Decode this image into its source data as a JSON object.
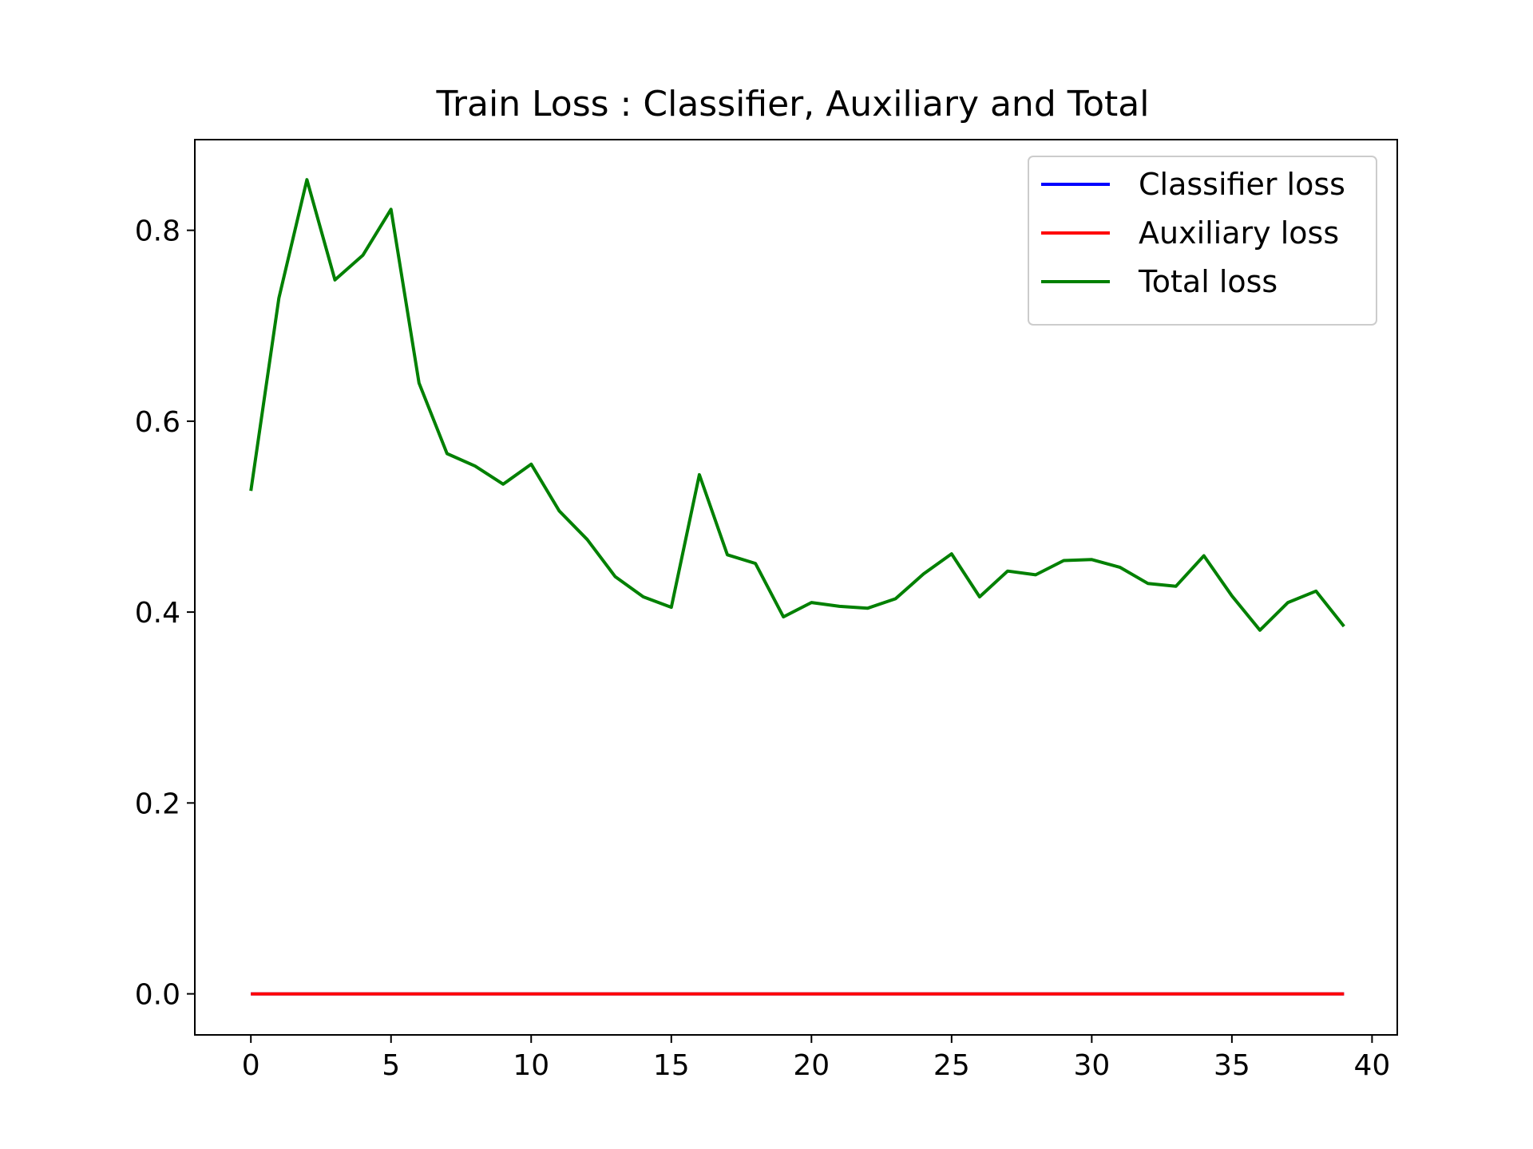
{
  "chart_data": {
    "type": "line",
    "title": "Train Loss : Classifier, Auxiliary and Total",
    "xlabel": "",
    "ylabel": "",
    "xlim": [
      -2,
      40.9
    ],
    "ylim": [
      -0.043,
      0.895
    ],
    "xticks": [
      0,
      5,
      10,
      15,
      20,
      25,
      30,
      35,
      40
    ],
    "xtick_labels": [
      "0",
      "5",
      "10",
      "15",
      "20",
      "25",
      "30",
      "35",
      "40"
    ],
    "yticks": [
      0.0,
      0.2,
      0.4,
      0.6,
      0.8
    ],
    "ytick_labels": [
      "0.0",
      "0.2",
      "0.4",
      "0.6",
      "0.8"
    ],
    "grid": false,
    "legend_position": "top-right",
    "x": [
      0,
      1,
      2,
      3,
      4,
      5,
      6,
      7,
      8,
      9,
      10,
      11,
      12,
      13,
      14,
      15,
      16,
      17,
      18,
      19,
      20,
      21,
      22,
      23,
      24,
      25,
      26,
      27,
      28,
      29,
      30,
      31,
      32,
      33,
      34,
      35,
      36,
      37,
      38,
      39
    ],
    "series": [
      {
        "name": "Classifier loss",
        "color": "#0000ff",
        "values": [
          0,
          0,
          0,
          0,
          0,
          0,
          0,
          0,
          0,
          0,
          0,
          0,
          0,
          0,
          0,
          0,
          0,
          0,
          0,
          0,
          0,
          0,
          0,
          0,
          0,
          0,
          0,
          0,
          0,
          0,
          0,
          0,
          0,
          0,
          0,
          0,
          0,
          0,
          0,
          0
        ]
      },
      {
        "name": "Auxiliary loss",
        "color": "#ff0000",
        "values": [
          0,
          0,
          0,
          0,
          0,
          0,
          0,
          0,
          0,
          0,
          0,
          0,
          0,
          0,
          0,
          0,
          0,
          0,
          0,
          0,
          0,
          0,
          0,
          0,
          0,
          0,
          0,
          0,
          0,
          0,
          0,
          0,
          0,
          0,
          0,
          0,
          0,
          0,
          0,
          0
        ]
      },
      {
        "name": "Total loss",
        "color": "#008000",
        "values": [
          0.527,
          0.729,
          0.853,
          0.748,
          0.774,
          0.822,
          0.64,
          0.566,
          0.553,
          0.534,
          0.555,
          0.506,
          0.476,
          0.437,
          0.416,
          0.405,
          0.544,
          0.46,
          0.451,
          0.395,
          0.41,
          0.406,
          0.404,
          0.414,
          0.44,
          0.461,
          0.416,
          0.443,
          0.439,
          0.454,
          0.455,
          0.447,
          0.43,
          0.427,
          0.459,
          0.417,
          0.381,
          0.41,
          0.422,
          0.385
        ]
      }
    ]
  }
}
